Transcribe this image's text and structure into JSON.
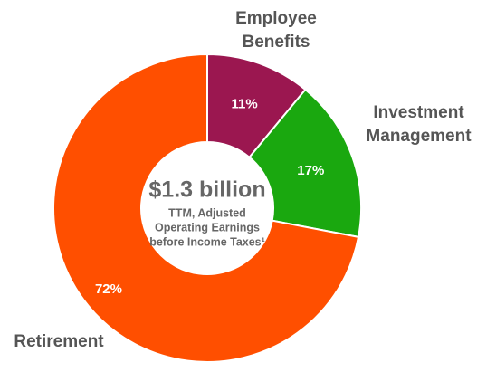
{
  "chart_data": {
    "type": "donut",
    "center_title": "$1.3 billion",
    "center_lines": [
      "TTM, Adjusted",
      "Operating Earnings",
      "before Income Taxes¹"
    ],
    "categories": [
      "Employee Benefits",
      "Investment Management",
      "Retirement"
    ],
    "values": [
      11,
      17,
      72
    ],
    "value_labels": [
      "11%",
      "17%",
      "72%"
    ],
    "colors": [
      "#9b1750",
      "#1aa80f",
      "#ff4f00"
    ]
  }
}
